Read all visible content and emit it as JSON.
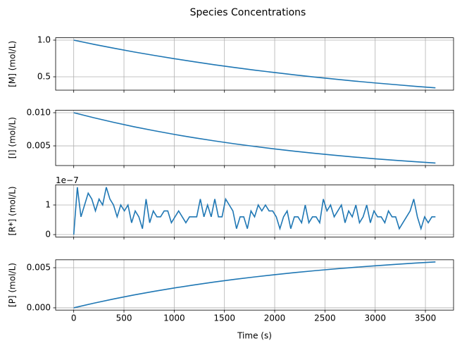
{
  "title": "Species Concentrations",
  "chart_data": [
    {
      "type": "line",
      "ylabel": "[M] (mol/L)",
      "color": "#1f77b4",
      "grid": true,
      "x": [
        0,
        200,
        400,
        600,
        800,
        1000,
        1200,
        1400,
        1600,
        1800,
        2000,
        2200,
        2400,
        2600,
        2800,
        3000,
        3200,
        3400,
        3600
      ],
      "values": [
        1.0,
        0.943,
        0.89,
        0.839,
        0.792,
        0.747,
        0.705,
        0.664,
        0.627,
        0.591,
        0.558,
        0.526,
        0.496,
        0.468,
        0.441,
        0.416,
        0.393,
        0.37,
        0.349
      ],
      "xlim": [
        -180,
        3780
      ],
      "xticks": [
        0,
        500,
        1000,
        1500,
        2000,
        2500,
        3000,
        3500
      ],
      "ylim": [
        0.3175,
        1.0325
      ],
      "yticks": [
        0.5,
        {
          "value": 1,
          "label": "1.0"
        }
      ]
    },
    {
      "type": "line",
      "ylabel": "[I] (mol/L)",
      "color": "#1f77b4",
      "grid": true,
      "x": [
        0,
        200,
        400,
        600,
        800,
        1000,
        1200,
        1400,
        1600,
        1800,
        2000,
        2200,
        2400,
        2600,
        2800,
        3000,
        3200,
        3400,
        3600
      ],
      "values": [
        0.01,
        0.00924,
        0.00854,
        0.00788,
        0.00729,
        0.00673,
        0.00622,
        0.00575,
        0.00531,
        0.00491,
        0.00453,
        0.00419,
        0.00387,
        0.00358,
        0.0033,
        0.00305,
        0.00282,
        0.00261,
        0.00241
      ],
      "xlim": [
        -180,
        3780
      ],
      "xticks": [
        0,
        500,
        1000,
        1500,
        2000,
        2500,
        3000,
        3500
      ],
      "ylim": [
        0.00203,
        0.01038
      ],
      "yticks": [
        0.005,
        {
          "value": 0.01,
          "label": "0.010"
        }
      ]
    },
    {
      "type": "line",
      "ylabel": "[R*] (mol/L)",
      "offset_label": "1e−7",
      "color": "#1f77b4",
      "grid": true,
      "x": [
        0,
        36,
        72,
        108,
        144,
        180,
        216,
        252,
        288,
        324,
        360,
        396,
        432,
        468,
        504,
        540,
        576,
        612,
        648,
        684,
        720,
        756,
        792,
        828,
        864,
        900,
        936,
        972,
        1008,
        1044,
        1080,
        1116,
        1152,
        1188,
        1224,
        1260,
        1296,
        1332,
        1368,
        1404,
        1440,
        1476,
        1512,
        1548,
        1584,
        1620,
        1656,
        1692,
        1728,
        1764,
        1800,
        1836,
        1872,
        1908,
        1944,
        1980,
        2016,
        2052,
        2088,
        2124,
        2160,
        2196,
        2232,
        2268,
        2304,
        2340,
        2376,
        2412,
        2448,
        2484,
        2520,
        2556,
        2592,
        2628,
        2664,
        2700,
        2736,
        2772,
        2808,
        2844,
        2880,
        2916,
        2952,
        2988,
        3024,
        3060,
        3096,
        3132,
        3168,
        3204,
        3240,
        3276,
        3312,
        3348,
        3384,
        3420,
        3456,
        3492,
        3528,
        3564,
        3600
      ],
      "values": [
        0,
        1.6,
        0.6,
        1.0,
        1.4,
        1.2,
        0.8,
        1.2,
        1.0,
        1.6,
        1.2,
        1.0,
        0.6,
        1.0,
        0.8,
        1.0,
        0.4,
        0.8,
        0.6,
        0.2,
        1.2,
        0.4,
        0.8,
        0.6,
        0.6,
        0.8,
        0.8,
        0.4,
        0.6,
        0.8,
        0.6,
        0.4,
        0.6,
        0.6,
        0.6,
        1.2,
        0.6,
        1.0,
        0.6,
        1.2,
        0.6,
        0.6,
        1.2,
        1.0,
        0.8,
        0.2,
        0.6,
        0.6,
        0.2,
        0.8,
        0.6,
        1.0,
        0.8,
        1.0,
        0.8,
        0.8,
        0.6,
        0.2,
        0.6,
        0.8,
        0.2,
        0.6,
        0.6,
        0.4,
        1.0,
        0.4,
        0.6,
        0.6,
        0.4,
        1.2,
        0.8,
        1.0,
        0.6,
        0.8,
        1.0,
        0.4,
        0.8,
        0.6,
        1.0,
        0.4,
        0.6,
        1.0,
        0.4,
        0.8,
        0.6,
        0.6,
        0.4,
        0.8,
        0.6,
        0.6,
        0.2,
        0.4,
        0.6,
        0.8,
        1.2,
        0.6,
        0.2,
        0.6,
        0.4,
        0.6,
        0.6
      ],
      "xlim": [
        -180,
        3780
      ],
      "xticks": [
        0,
        500,
        1000,
        1500,
        2000,
        2500,
        3000,
        3500
      ],
      "ylim": [
        -0.08,
        1.68
      ],
      "yticks": [
        0,
        1
      ]
    },
    {
      "type": "line",
      "ylabel": "[P] (mol/L)",
      "xlabel": "Time (s)",
      "color": "#1f77b4",
      "grid": true,
      "x": [
        0,
        200,
        400,
        600,
        800,
        1000,
        1200,
        1400,
        1600,
        1800,
        2000,
        2200,
        2400,
        2600,
        2800,
        3000,
        3200,
        3400,
        3600
      ],
      "values": [
        0,
        0.000577,
        0.001109,
        0.001601,
        0.002054,
        0.002473,
        0.002859,
        0.003216,
        0.003545,
        0.003849,
        0.00413,
        0.004389,
        0.004628,
        0.004849,
        0.005053,
        0.005241,
        0.005415,
        0.005575,
        0.005723
      ],
      "xlim": [
        -180,
        3780
      ],
      "xticks": [
        0,
        500,
        1000,
        1500,
        2000,
        2500,
        3000,
        3500
      ],
      "ylim": [
        -0.000285,
        0.005985
      ],
      "yticks": [
        {
          "value": 0,
          "label": "0.000"
        },
        0.005
      ]
    }
  ]
}
